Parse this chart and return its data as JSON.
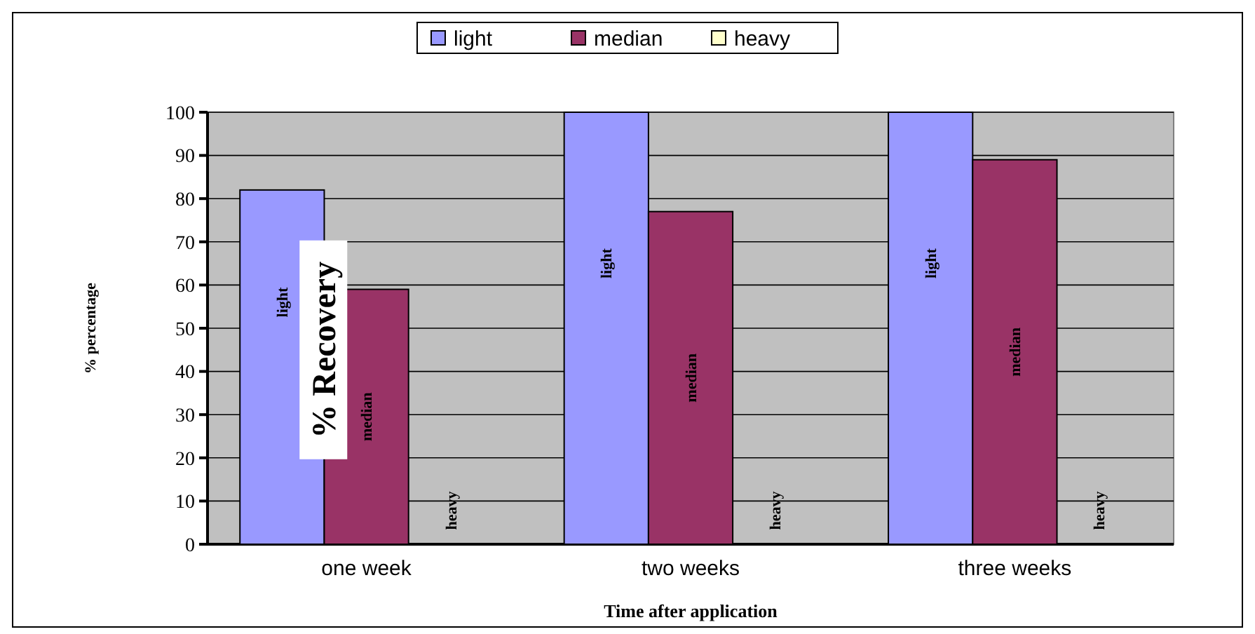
{
  "chart_data": {
    "type": "bar",
    "xlabel": "Time after application",
    "ylabel": "% percentage",
    "categories": [
      "one week",
      "two weeks",
      "three weeks"
    ],
    "series": [
      {
        "name": "light",
        "color": "#9999ff",
        "values": [
          82,
          100,
          100
        ]
      },
      {
        "name": "median",
        "color": "#993366",
        "values": [
          59,
          77,
          89
        ]
      },
      {
        "name": "heavy",
        "color": "#ffffcc",
        "values": [
          0,
          0,
          0
        ]
      }
    ],
    "ylim": [
      0,
      100
    ],
    "yticks": [
      0,
      10,
      20,
      30,
      40,
      50,
      60,
      70,
      80,
      90,
      100
    ],
    "grid": "y",
    "legend": "top",
    "annotations": [
      "% Recovery"
    ]
  }
}
